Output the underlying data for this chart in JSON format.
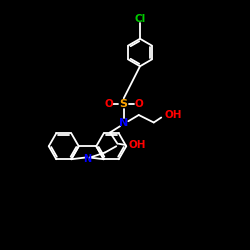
{
  "background_color": "#000000",
  "bond_color": "#ffffff",
  "cl_color": "#00cc00",
  "n_color": "#0000ff",
  "o_color": "#ff0000",
  "s_color": "#FFA500",
  "lw": 1.3,
  "xlim": [
    0,
    10
  ],
  "ylim": [
    0,
    10
  ]
}
